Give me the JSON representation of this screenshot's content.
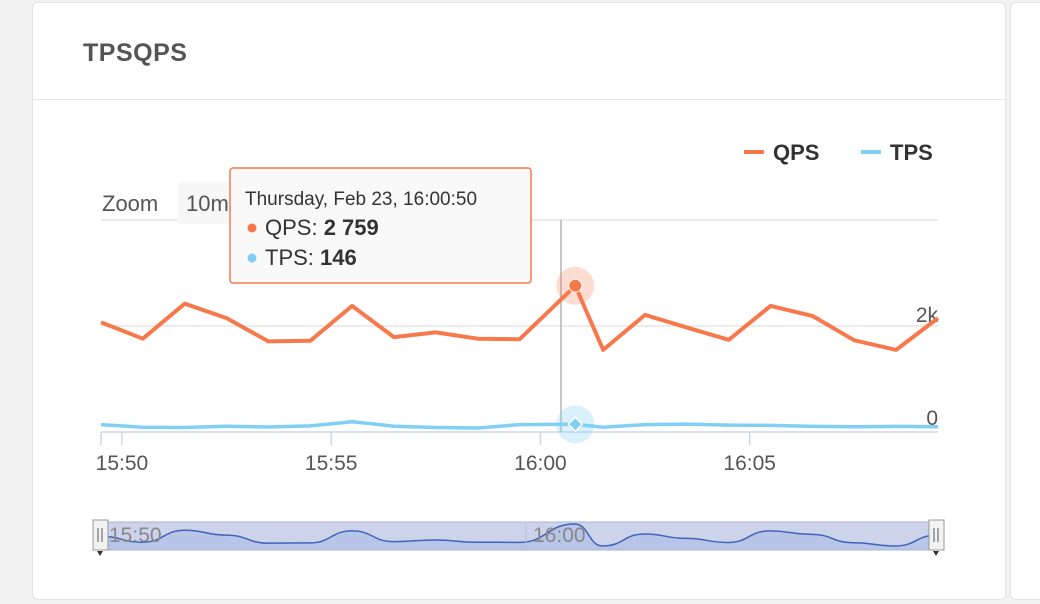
{
  "card": {
    "title": "TPSQPS"
  },
  "zoom": {
    "label": "Zoom",
    "button": "10m"
  },
  "legend": {
    "items": [
      {
        "name": "QPS",
        "color": "#f7794b"
      },
      {
        "name": "TPS",
        "color": "#82cff5"
      }
    ]
  },
  "tooltip": {
    "title": "Thursday, Feb 23, 16:00:50",
    "rows": [
      {
        "name": "QPS",
        "value": "2 759"
      },
      {
        "name": "TPS",
        "value": "146"
      }
    ]
  },
  "chart_data": {
    "type": "line",
    "x": [
      "15:49:30",
      "15:50:30",
      "15:51:30",
      "15:52:30",
      "15:53:30",
      "15:54:30",
      "15:55:30",
      "15:56:30",
      "15:57:30",
      "15:58:30",
      "15:59:30",
      "16:00:50",
      "16:01:30",
      "16:02:30",
      "16:03:30",
      "16:04:30",
      "16:05:30",
      "16:06:30",
      "16:07:30",
      "16:08:30",
      "16:09:30"
    ],
    "series": [
      {
        "name": "QPS",
        "color": "#f7794b",
        "values": [
          2070,
          1760,
          2420,
          2150,
          1710,
          1720,
          2380,
          1790,
          1880,
          1760,
          1750,
          2759,
          1550,
          2210,
          1970,
          1740,
          2380,
          2190,
          1730,
          1550,
          2150
        ]
      },
      {
        "name": "TPS",
        "color": "#82cff5",
        "values": [
          140,
          90,
          85,
          110,
          95,
          115,
          195,
          110,
          85,
          75,
          140,
          146,
          90,
          140,
          150,
          130,
          125,
          105,
          100,
          105,
          100
        ]
      }
    ],
    "xticks": [
      "15:50",
      "15:55",
      "16:00",
      "16:05"
    ],
    "yticks": [
      "0",
      "2k"
    ],
    "navigator_ticks": [
      "15:50",
      "16:00"
    ]
  }
}
